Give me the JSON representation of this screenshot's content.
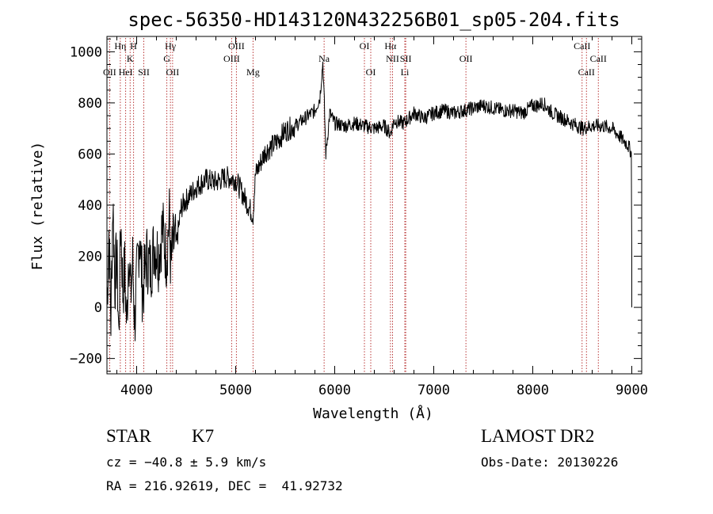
{
  "chart_data": {
    "type": "line",
    "title": "spec-56350-HD143120N432256B01_sp05-204.fits",
    "xlabel": "Wavelength (Å)",
    "ylabel": "Flux (relative)",
    "xlim": [
      3700,
      9100
    ],
    "ylim": [
      -260,
      1060
    ],
    "x_ticks": [
      4000,
      5000,
      6000,
      7000,
      8000,
      9000
    ],
    "y_ticks": [
      -200,
      0,
      200,
      400,
      600,
      800,
      1000
    ],
    "x_tick_labels": [
      "4000",
      "5000",
      "6000",
      "7000",
      "8000",
      "9000"
    ],
    "y_tick_labels": [
      "−200",
      "0",
      "200",
      "400",
      "600",
      "800",
      "1000"
    ],
    "series": [
      {
        "name": "spectrum",
        "x": [
          3700,
          3720,
          3740,
          3760,
          3780,
          3800,
          3820,
          3840,
          3860,
          3880,
          3900,
          3920,
          3940,
          3960,
          3980,
          4000,
          4030,
          4060,
          4100,
          4140,
          4180,
          4220,
          4260,
          4300,
          4330,
          4345,
          4360,
          4380,
          4400,
          4450,
          4500,
          4600,
          4700,
          4800,
          4900,
          5000,
          5100,
          5150,
          5175,
          5200,
          5300,
          5400,
          5500,
          5600,
          5700,
          5800,
          5850,
          5880,
          5895,
          5910,
          5950,
          6000,
          6100,
          6200,
          6300,
          6400,
          6500,
          6562,
          6600,
          6700,
          6800,
          6900,
          7000,
          7100,
          7200,
          7300,
          7400,
          7500,
          7600,
          7700,
          7800,
          7900,
          8000,
          8050,
          8100,
          8200,
          8300,
          8400,
          8500,
          8600,
          8700,
          8800,
          8900,
          8950,
          8980,
          8995,
          9000
        ],
        "y": [
          0,
          300,
          -50,
          420,
          100,
          200,
          -120,
          350,
          60,
          150,
          -80,
          250,
          40,
          180,
          -60,
          100,
          300,
          50,
          200,
          150,
          250,
          200,
          310,
          200,
          350,
          150,
          220,
          260,
          240,
          390,
          420,
          470,
          500,
          490,
          510,
          500,
          420,
          380,
          360,
          520,
          610,
          640,
          690,
          710,
          740,
          770,
          820,
          960,
          800,
          600,
          760,
          720,
          710,
          720,
          710,
          700,
          710,
          680,
          730,
          720,
          760,
          740,
          760,
          770,
          760,
          770,
          780,
          790,
          780,
          770,
          770,
          760,
          790,
          790,
          800,
          760,
          740,
          720,
          700,
          710,
          710,
          700,
          660,
          640,
          620,
          600,
          200
        ]
      }
    ],
    "line_markers": [
      {
        "name": "OII",
        "x": 3727,
        "row": 3
      },
      {
        "name": "Hη",
        "x": 3835,
        "row": 1
      },
      {
        "name": "HeI",
        "x": 3889,
        "row": 3
      },
      {
        "name": "K",
        "x": 3934,
        "row": 2
      },
      {
        "name": "H",
        "x": 3969,
        "row": 1
      },
      {
        "name": "SII",
        "x": 4072,
        "row": 3
      },
      {
        "name": "Hγ",
        "x": 4341,
        "row": 1
      },
      {
        "name": "G",
        "x": 4305,
        "row": 2
      },
      {
        "name": "OII",
        "x": 4363,
        "row": 3
      },
      {
        "name": "OIII",
        "x": 5007,
        "row": 1
      },
      {
        "name": "OIII",
        "x": 4959,
        "row": 2
      },
      {
        "name": "Mg",
        "x": 5175,
        "row": 3
      },
      {
        "name": "Na",
        "x": 5893,
        "row": 2
      },
      {
        "name": "OI",
        "x": 6300,
        "row": 1
      },
      {
        "name": "OI",
        "x": 6364,
        "row": 3
      },
      {
        "name": "Hα",
        "x": 6563,
        "row": 1
      },
      {
        "name": "NII",
        "x": 6584,
        "row": 2
      },
      {
        "name": "SII",
        "x": 6717,
        "row": 2
      },
      {
        "name": "Li",
        "x": 6708,
        "row": 3
      },
      {
        "name": "OII",
        "x": 7325,
        "row": 2
      },
      {
        "name": "CaII",
        "x": 8498,
        "row": 1
      },
      {
        "name": "CaII",
        "x": 8542,
        "row": 3
      },
      {
        "name": "CaII",
        "x": 8662,
        "row": 2
      }
    ]
  },
  "footer": {
    "object_class": "STAR",
    "subclass": "K7",
    "redshift": "cz = −40.8 ± 5.9 km/s",
    "coords": "RA = 216.92619, DEC =  41.92732",
    "survey": "LAMOST DR2",
    "obs_date": "Obs-Date: 20130226"
  },
  "colors": {
    "line": "#000000",
    "marker": "#b22222"
  }
}
